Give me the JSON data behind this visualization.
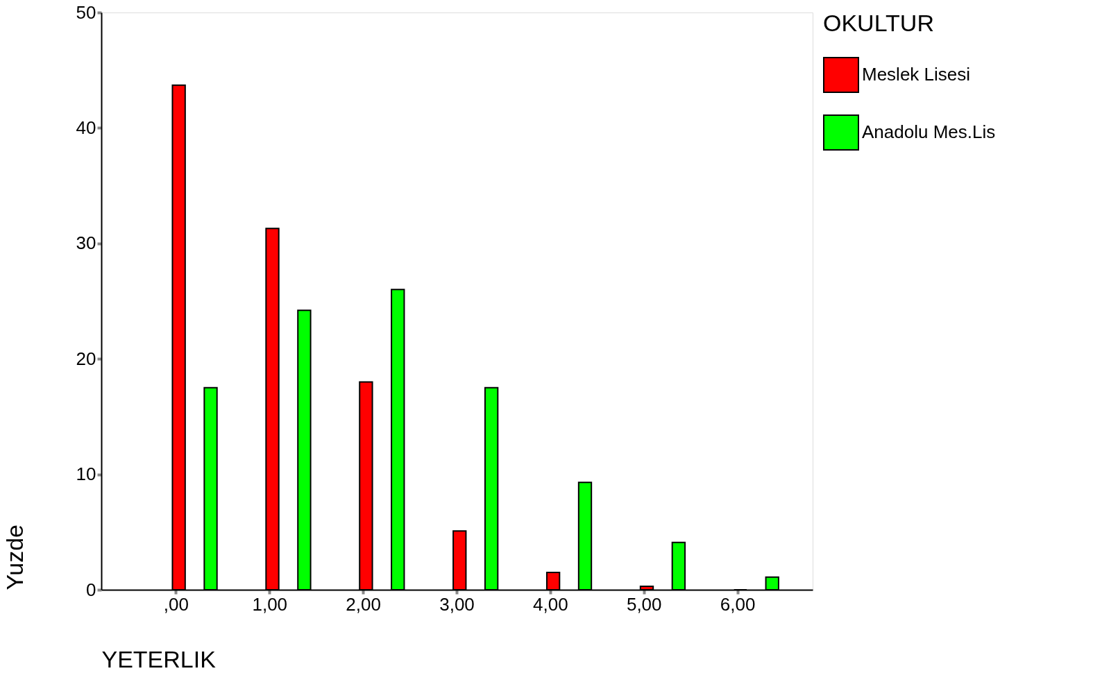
{
  "chart_data": {
    "type": "bar",
    "xlabel": "YETERLIK",
    "ylabel": "Yuzde",
    "legend_title": "OKULTUR",
    "categories": [
      ",00",
      "1,00",
      "2,00",
      "3,00",
      "4,00",
      "5,00",
      "6,00"
    ],
    "series": [
      {
        "name": "Meslek Lisesi",
        "color": "#ff0000",
        "values": [
          43.7,
          31.3,
          18.0,
          5.1,
          1.5,
          0.3,
          0
        ]
      },
      {
        "name": "Anadolu Mes.Lis",
        "color": "#00ff00",
        "values": [
          17.5,
          24.2,
          26.0,
          17.5,
          9.3,
          4.1,
          1.1
        ]
      }
    ],
    "ylim": [
      0,
      50
    ],
    "yticks": [
      0,
      10,
      20,
      30,
      40,
      50
    ],
    "grid": false,
    "legend": "right"
  }
}
